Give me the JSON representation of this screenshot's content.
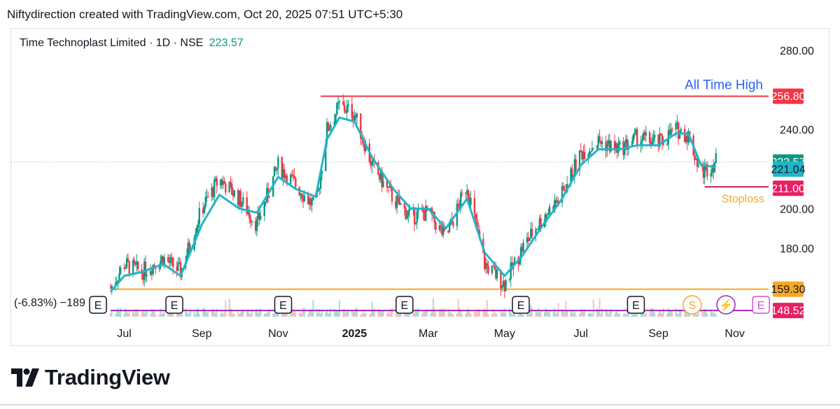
{
  "caption": "Niftydirection created with TradingView.com, Oct 20, 2025 07:51 UTC+5:30",
  "legend": {
    "symbol": "Time Technoplast Limited · 1D · NSE",
    "price": "223.57"
  },
  "brand": "TradingView",
  "colors": {
    "up": "#089981",
    "down": "#f23645",
    "ma": "#21b5c9",
    "ath_line": "#f23645",
    "support_line": "#f7a825",
    "stoploss_line": "#c2185b",
    "low_line": "#9c27b0",
    "text_blue": "#2962ff",
    "text_orange": "#f7a825"
  },
  "chart_data": {
    "type": "line",
    "title": "Time Technoplast Limited · 1D · NSE",
    "xlabel": "",
    "ylabel": "",
    "ylim": [
      140,
      290
    ],
    "y_ticks": [
      "280.00",
      "240.00",
      "200.00",
      "180.00"
    ],
    "x_ticks": [
      "Jul",
      "Sep",
      "Nov",
      "2025",
      "Mar",
      "May",
      "Jul",
      "Sep",
      "Nov"
    ],
    "series": [
      {
        "kind": "price",
        "x": [
          "2024-06-20",
          "2024-07-01",
          "2024-07-15",
          "2024-08-01",
          "2024-08-15",
          "2024-09-01",
          "2024-09-15",
          "2024-10-01",
          "2024-10-15",
          "2024-11-01",
          "2024-11-15",
          "2024-12-01",
          "2024-12-10",
          "2024-12-20",
          "2025-01-01",
          "2025-01-15",
          "2025-02-01",
          "2025-02-15",
          "2025-03-01",
          "2025-03-15",
          "2025-04-01",
          "2025-04-15",
          "2025-05-01",
          "2025-05-15",
          "2025-06-01",
          "2025-06-15",
          "2025-07-01",
          "2025-07-15",
          "2025-08-01",
          "2025-08-15",
          "2025-09-01",
          "2025-09-15",
          "2025-09-25",
          "2025-10-05",
          "2025-10-17"
        ],
        "values": [
          160,
          172,
          168,
          175,
          168,
          200,
          215,
          205,
          192,
          222,
          212,
          200,
          240,
          252,
          248,
          222,
          205,
          196,
          198,
          185,
          212,
          172,
          162,
          180,
          196,
          206,
          228,
          234,
          230,
          236,
          233,
          240,
          237,
          218,
          224
        ]
      },
      {
        "kind": "moving-average",
        "x": [
          "2024-06-20",
          "2024-07-01",
          "2024-07-15",
          "2024-08-01",
          "2024-08-15",
          "2024-09-01",
          "2024-09-15",
          "2024-10-01",
          "2024-10-15",
          "2024-11-01",
          "2024-11-15",
          "2024-12-01",
          "2024-12-10",
          "2024-12-20",
          "2025-01-01",
          "2025-01-15",
          "2025-02-01",
          "2025-02-15",
          "2025-03-01",
          "2025-03-15",
          "2025-04-01",
          "2025-04-15",
          "2025-05-01",
          "2025-05-15",
          "2025-06-01",
          "2025-06-15",
          "2025-07-01",
          "2025-07-15",
          "2025-08-01",
          "2025-08-15",
          "2025-09-01",
          "2025-09-15",
          "2025-09-25",
          "2025-10-05",
          "2025-10-17"
        ],
        "values": [
          158,
          166,
          168,
          172,
          166,
          192,
          207,
          200,
          198,
          216,
          210,
          206,
          235,
          246,
          244,
          226,
          210,
          200,
          200,
          190,
          205,
          178,
          166,
          176,
          192,
          204,
          222,
          230,
          230,
          232,
          232,
          238,
          238,
          222,
          221
        ]
      }
    ],
    "levels": [
      {
        "name": "ath",
        "value": 256.8,
        "label": "256.80",
        "annotation": "All Time High"
      },
      {
        "name": "last",
        "value": 223.57,
        "label": "223.57"
      },
      {
        "name": "ma",
        "value": 221.04,
        "label": "221.04"
      },
      {
        "name": "stoploss",
        "value": 211.0,
        "label": "211.00",
        "annotation": "Stoploss"
      },
      {
        "name": "support",
        "value": 159.3,
        "label": "159.30"
      },
      {
        "name": "low",
        "value": 148.52,
        "label": "148.52"
      }
    ],
    "event_markers": [
      "E",
      "E",
      "E",
      "E",
      "E",
      "E",
      "S",
      "⚡",
      "E"
    ],
    "overlay_text": "(-6.83%) −189",
    "grid": false
  }
}
